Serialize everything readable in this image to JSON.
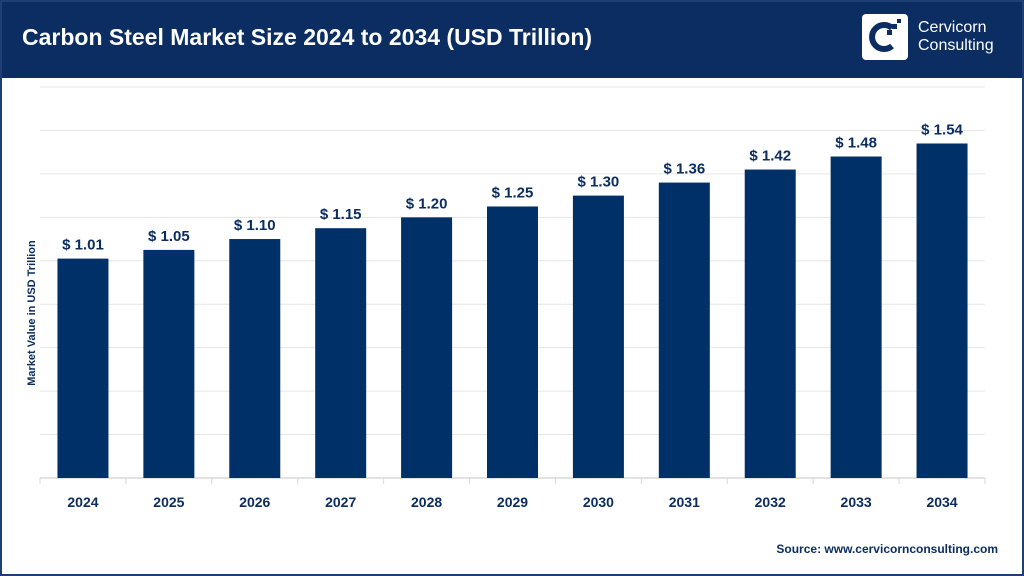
{
  "header": {
    "title": "Carbon Steel Market Size 2024 to 2034 (USD Trillion)",
    "logo_text": [
      "Cervicorn",
      "Consulting"
    ]
  },
  "source": "Source: www.cervicornconsulting.com",
  "colors": {
    "header": "#0b2d61",
    "bar": "#003068",
    "grid": "#e6e6e6"
  },
  "chart_data": {
    "type": "bar",
    "title": "Carbon Steel Market Size 2024 to 2034 (USD Trillion)",
    "xlabel": "",
    "ylabel": "Market Value in USD Trillion",
    "categories": [
      "2024",
      "2025",
      "2026",
      "2027",
      "2028",
      "2029",
      "2030",
      "2031",
      "2032",
      "2033",
      "2034"
    ],
    "values": [
      1.01,
      1.05,
      1.1,
      1.15,
      1.2,
      1.25,
      1.3,
      1.36,
      1.42,
      1.48,
      1.54
    ],
    "data_labels": [
      "$ 1.01",
      "$ 1.05",
      "$ 1.10",
      "$ 1.15",
      "$ 1.20",
      "$ 1.25",
      "$ 1.30",
      "$ 1.36",
      "$ 1.42",
      "$ 1.48",
      "$ 1.54"
    ],
    "ylim": [
      0,
      1.8
    ],
    "grid": true,
    "legend": "none"
  }
}
